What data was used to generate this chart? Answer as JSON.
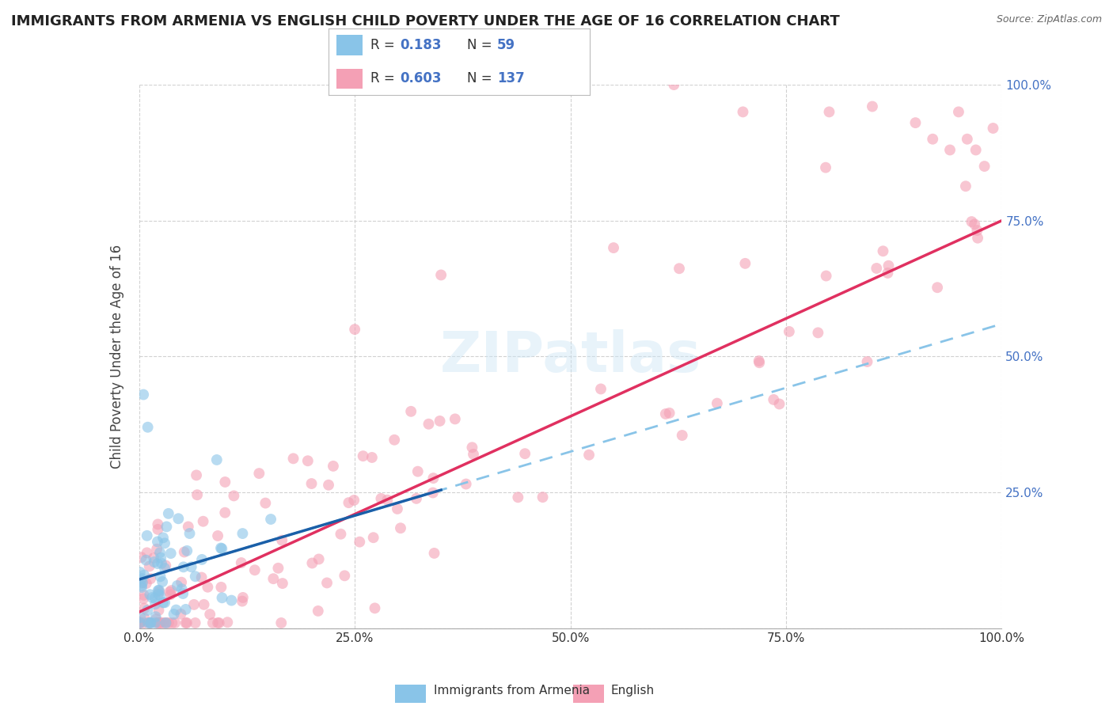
{
  "title": "IMMIGRANTS FROM ARMENIA VS ENGLISH CHILD POVERTY UNDER THE AGE OF 16 CORRELATION CHART",
  "source": "Source: ZipAtlas.com",
  "ylabel": "Child Poverty Under the Age of 16",
  "xlim": [
    0,
    1
  ],
  "ylim": [
    0,
    1
  ],
  "blue_color": "#89c4e8",
  "pink_color": "#f4a0b5",
  "blue_line_color": "#1a5fa8",
  "blue_dash_color": "#89c4e8",
  "pink_line_color": "#e03060",
  "R_blue": 0.183,
  "N_blue": 59,
  "R_pink": 0.603,
  "N_pink": 137,
  "watermark": "ZIPatlas",
  "legend_labels": [
    "Immigrants from Armenia",
    "English"
  ],
  "R_value_color": "#4472c4",
  "N_value_color": "#4472c4"
}
